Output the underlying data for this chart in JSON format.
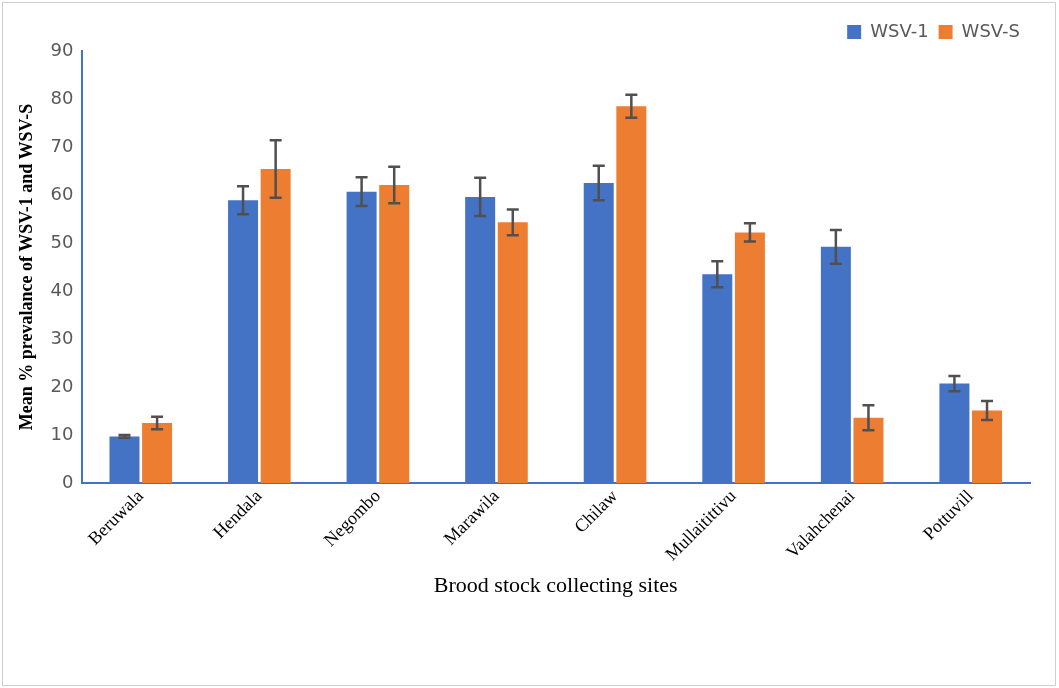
{
  "chart_data": {
    "type": "bar",
    "xlabel": "Brood stock collecting sites",
    "ylabel": "Mean % prevalance of WSV-1 and WSV-S",
    "categories": [
      "Beruwala",
      "Hendala",
      "Negombo",
      "Marawila",
      "Chilaw",
      "Mullaitittivu",
      "Valahchenai",
      "Pottuvill"
    ],
    "series": [
      {
        "name": "WSV-1",
        "color": "#4472c4",
        "values": [
          9.7,
          58.9,
          60.7,
          59.6,
          62.5,
          43.5,
          49.2,
          20.7
        ],
        "errors": [
          0.3,
          2.9,
          3,
          4,
          3.6,
          2.7,
          3.5,
          1.6
        ]
      },
      {
        "name": "WSV-S",
        "color": "#ed7d31",
        "values": [
          12.5,
          65.4,
          62.1,
          54.3,
          78.5,
          52.2,
          13.6,
          15.1
        ],
        "errors": [
          1.3,
          6,
          3.8,
          2.7,
          2.4,
          1.9,
          2.6,
          2
        ]
      }
    ],
    "ylim": [
      0,
      90
    ],
    "yticks": [
      0,
      10,
      20,
      30,
      40,
      50,
      60,
      70,
      80,
      90
    ],
    "grid": false,
    "legend": "top right"
  }
}
